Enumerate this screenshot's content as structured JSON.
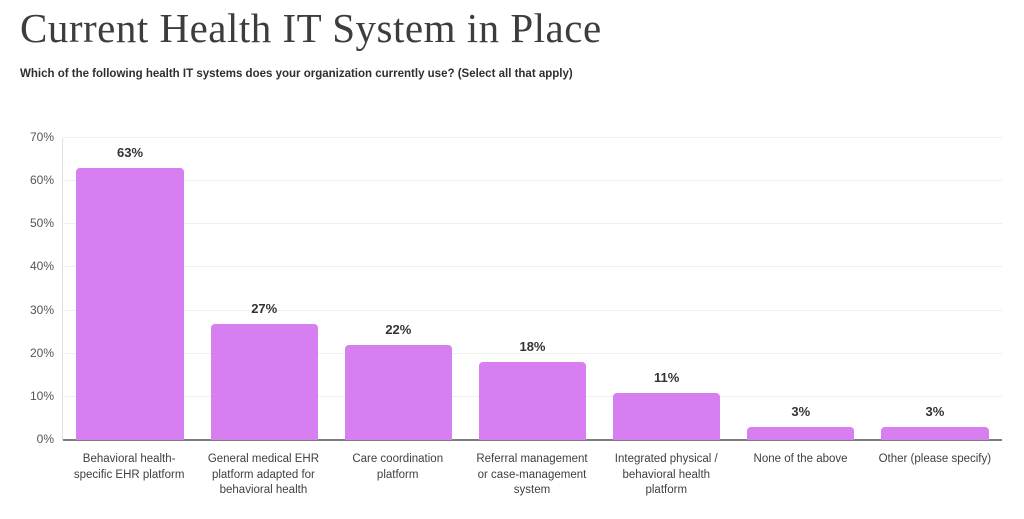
{
  "header": {
    "title": "Current Health IT System in Place",
    "subtitle": "Which of the following health IT systems does your organization currently use? (Select all that apply)"
  },
  "chart_data": {
    "type": "bar",
    "title": "Current Health IT System in Place",
    "categories": [
      "Behavioral health-specific EHR platform",
      "General medical EHR platform adapted for behavioral health",
      "Care coordination platform",
      "Referral management or case-management system",
      "Integrated physical / behavioral health platform",
      "None of the above",
      "Other (please specify)"
    ],
    "values": [
      63,
      27,
      22,
      18,
      11,
      3,
      3
    ],
    "value_labels": [
      "63%",
      "27%",
      "22%",
      "18%",
      "11%",
      "3%",
      "3%"
    ],
    "xlabel": "",
    "ylabel": "",
    "ylim": [
      0,
      70
    ],
    "ytick_step": 10,
    "yticks": [
      "0%",
      "10%",
      "20%",
      "30%",
      "40%",
      "50%",
      "60%",
      "70%"
    ],
    "grid": true,
    "legend": false,
    "colors": {
      "bar": "#d77ef0",
      "value_label": "#333333",
      "tick_label": "#555555",
      "category_label": "#404040",
      "gridline": "#efefef",
      "axis_line": "#7d7d7d",
      "title": "#3d3d3d",
      "subtitle": "#2f2f2f",
      "background": "#ffffff"
    }
  }
}
